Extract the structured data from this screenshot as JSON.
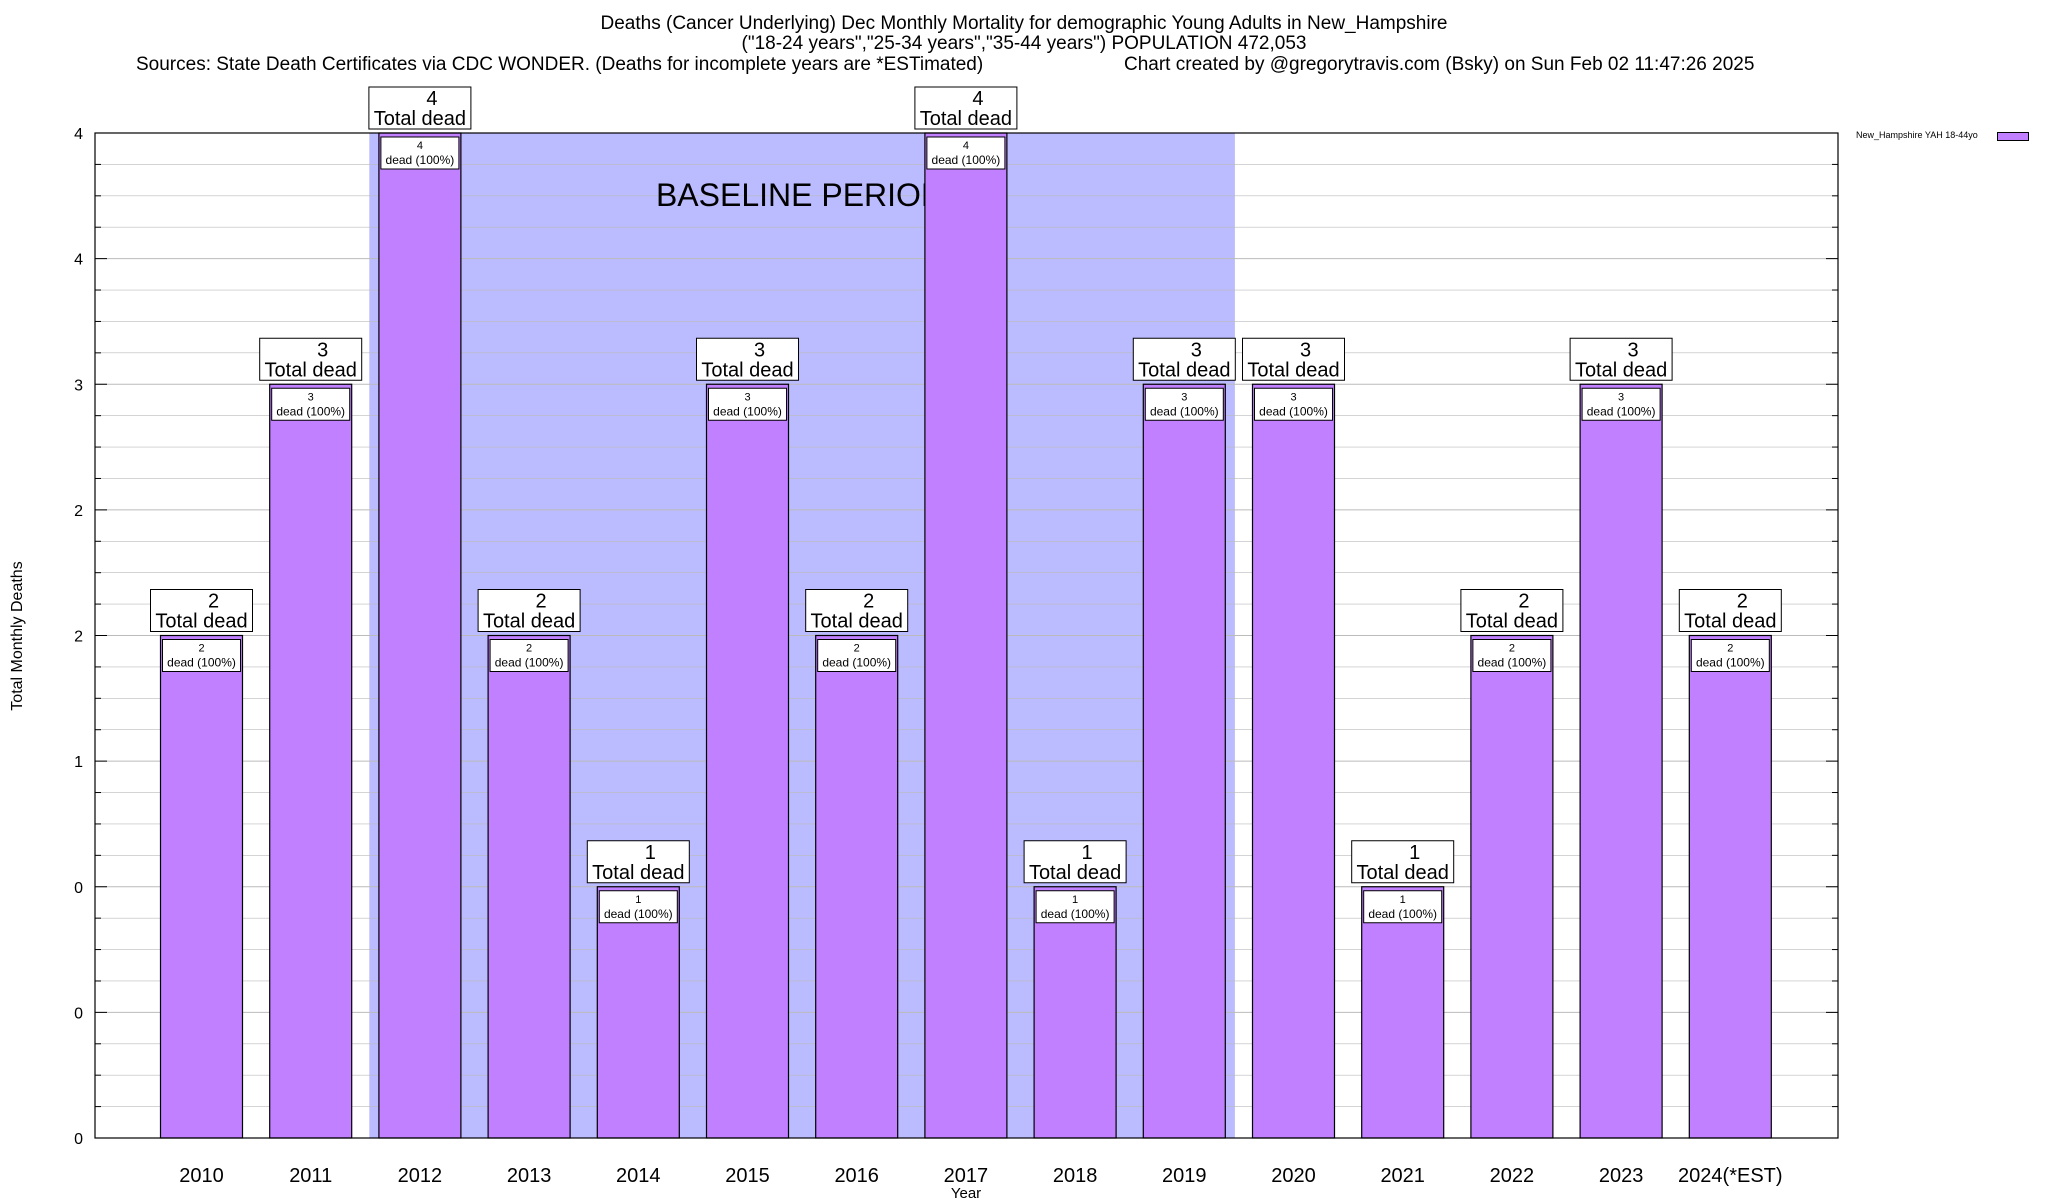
{
  "title": {
    "line1": "Deaths (Cancer Underlying) Dec Monthly Mortality for demographic Young Adults in New_Hampshire",
    "line2": "(\"18-24 years\",\"25-34 years\",\"35-44 years\") POPULATION 472,053",
    "sources": "Sources: State Death Certificates via CDC WONDER. (Deaths for incomplete years are *ESTimated)",
    "credit": "Chart created by @gregorytravis.com (Bsky) on Sun Feb 02 11:47:26 2025"
  },
  "legend": {
    "label": "New_Hampshire YAH 18-44yo",
    "color": "#c080ff"
  },
  "baseline_label": "BASELINE PERIOD",
  "chart_data": {
    "type": "bar",
    "title": "Deaths (Cancer Underlying) Dec Monthly Mortality for demographic Young Adults in New_Hampshire",
    "xlabel": "Year",
    "ylabel": "Total Monthly Deaths",
    "categories": [
      "2010",
      "2011",
      "2012",
      "2013",
      "2014",
      "2015",
      "2016",
      "2017",
      "2018",
      "2019",
      "2020",
      "2021",
      "2022",
      "2023",
      "2024(*EST)"
    ],
    "series": [
      {
        "name": "New_Hampshire YAH 18-44yo",
        "values": [
          2,
          3,
          4,
          2,
          1,
          3,
          2,
          4,
          1,
          3,
          3,
          1,
          2,
          3,
          2
        ]
      }
    ],
    "total_labels": [
      "2\nTotal dead",
      "3\nTotal dead",
      "4\nTotal dead",
      "2\nTotal dead",
      "1\nTotal dead",
      "3\nTotal dead",
      "2\nTotal dead",
      "4\nTotal dead",
      "1\nTotal dead",
      "3\nTotal dead",
      "3\nTotal dead",
      "1\nTotal dead",
      "2\nTotal dead",
      "3\nTotal dead",
      "2\nTotal dead"
    ],
    "inner_labels": [
      "2\ndead (100%)",
      "3\ndead (100%)",
      "4\ndead (100%)",
      "2\ndead (100%)",
      "1\ndead (100%)",
      "3\ndead (100%)",
      "2\ndead (100%)",
      "4\ndead (100%)",
      "1\ndead (100%)",
      "3\ndead (100%)",
      "3\ndead (100%)",
      "1\ndead (100%)",
      "2\ndead (100%)",
      "3\ndead (100%)",
      "2\ndead (100%)"
    ],
    "ytick_labels": [
      "0",
      "0",
      "1",
      "2",
      "2",
      "3",
      "4",
      "4"
    ],
    "ylim": [
      0,
      4
    ],
    "baseline_period": [
      "2012",
      "2019"
    ],
    "grid": true,
    "legend_position": "top-right",
    "colors": {
      "bar": "#c080ff",
      "baseline": "#bbbbff",
      "grid": "#bbbbbb"
    }
  }
}
